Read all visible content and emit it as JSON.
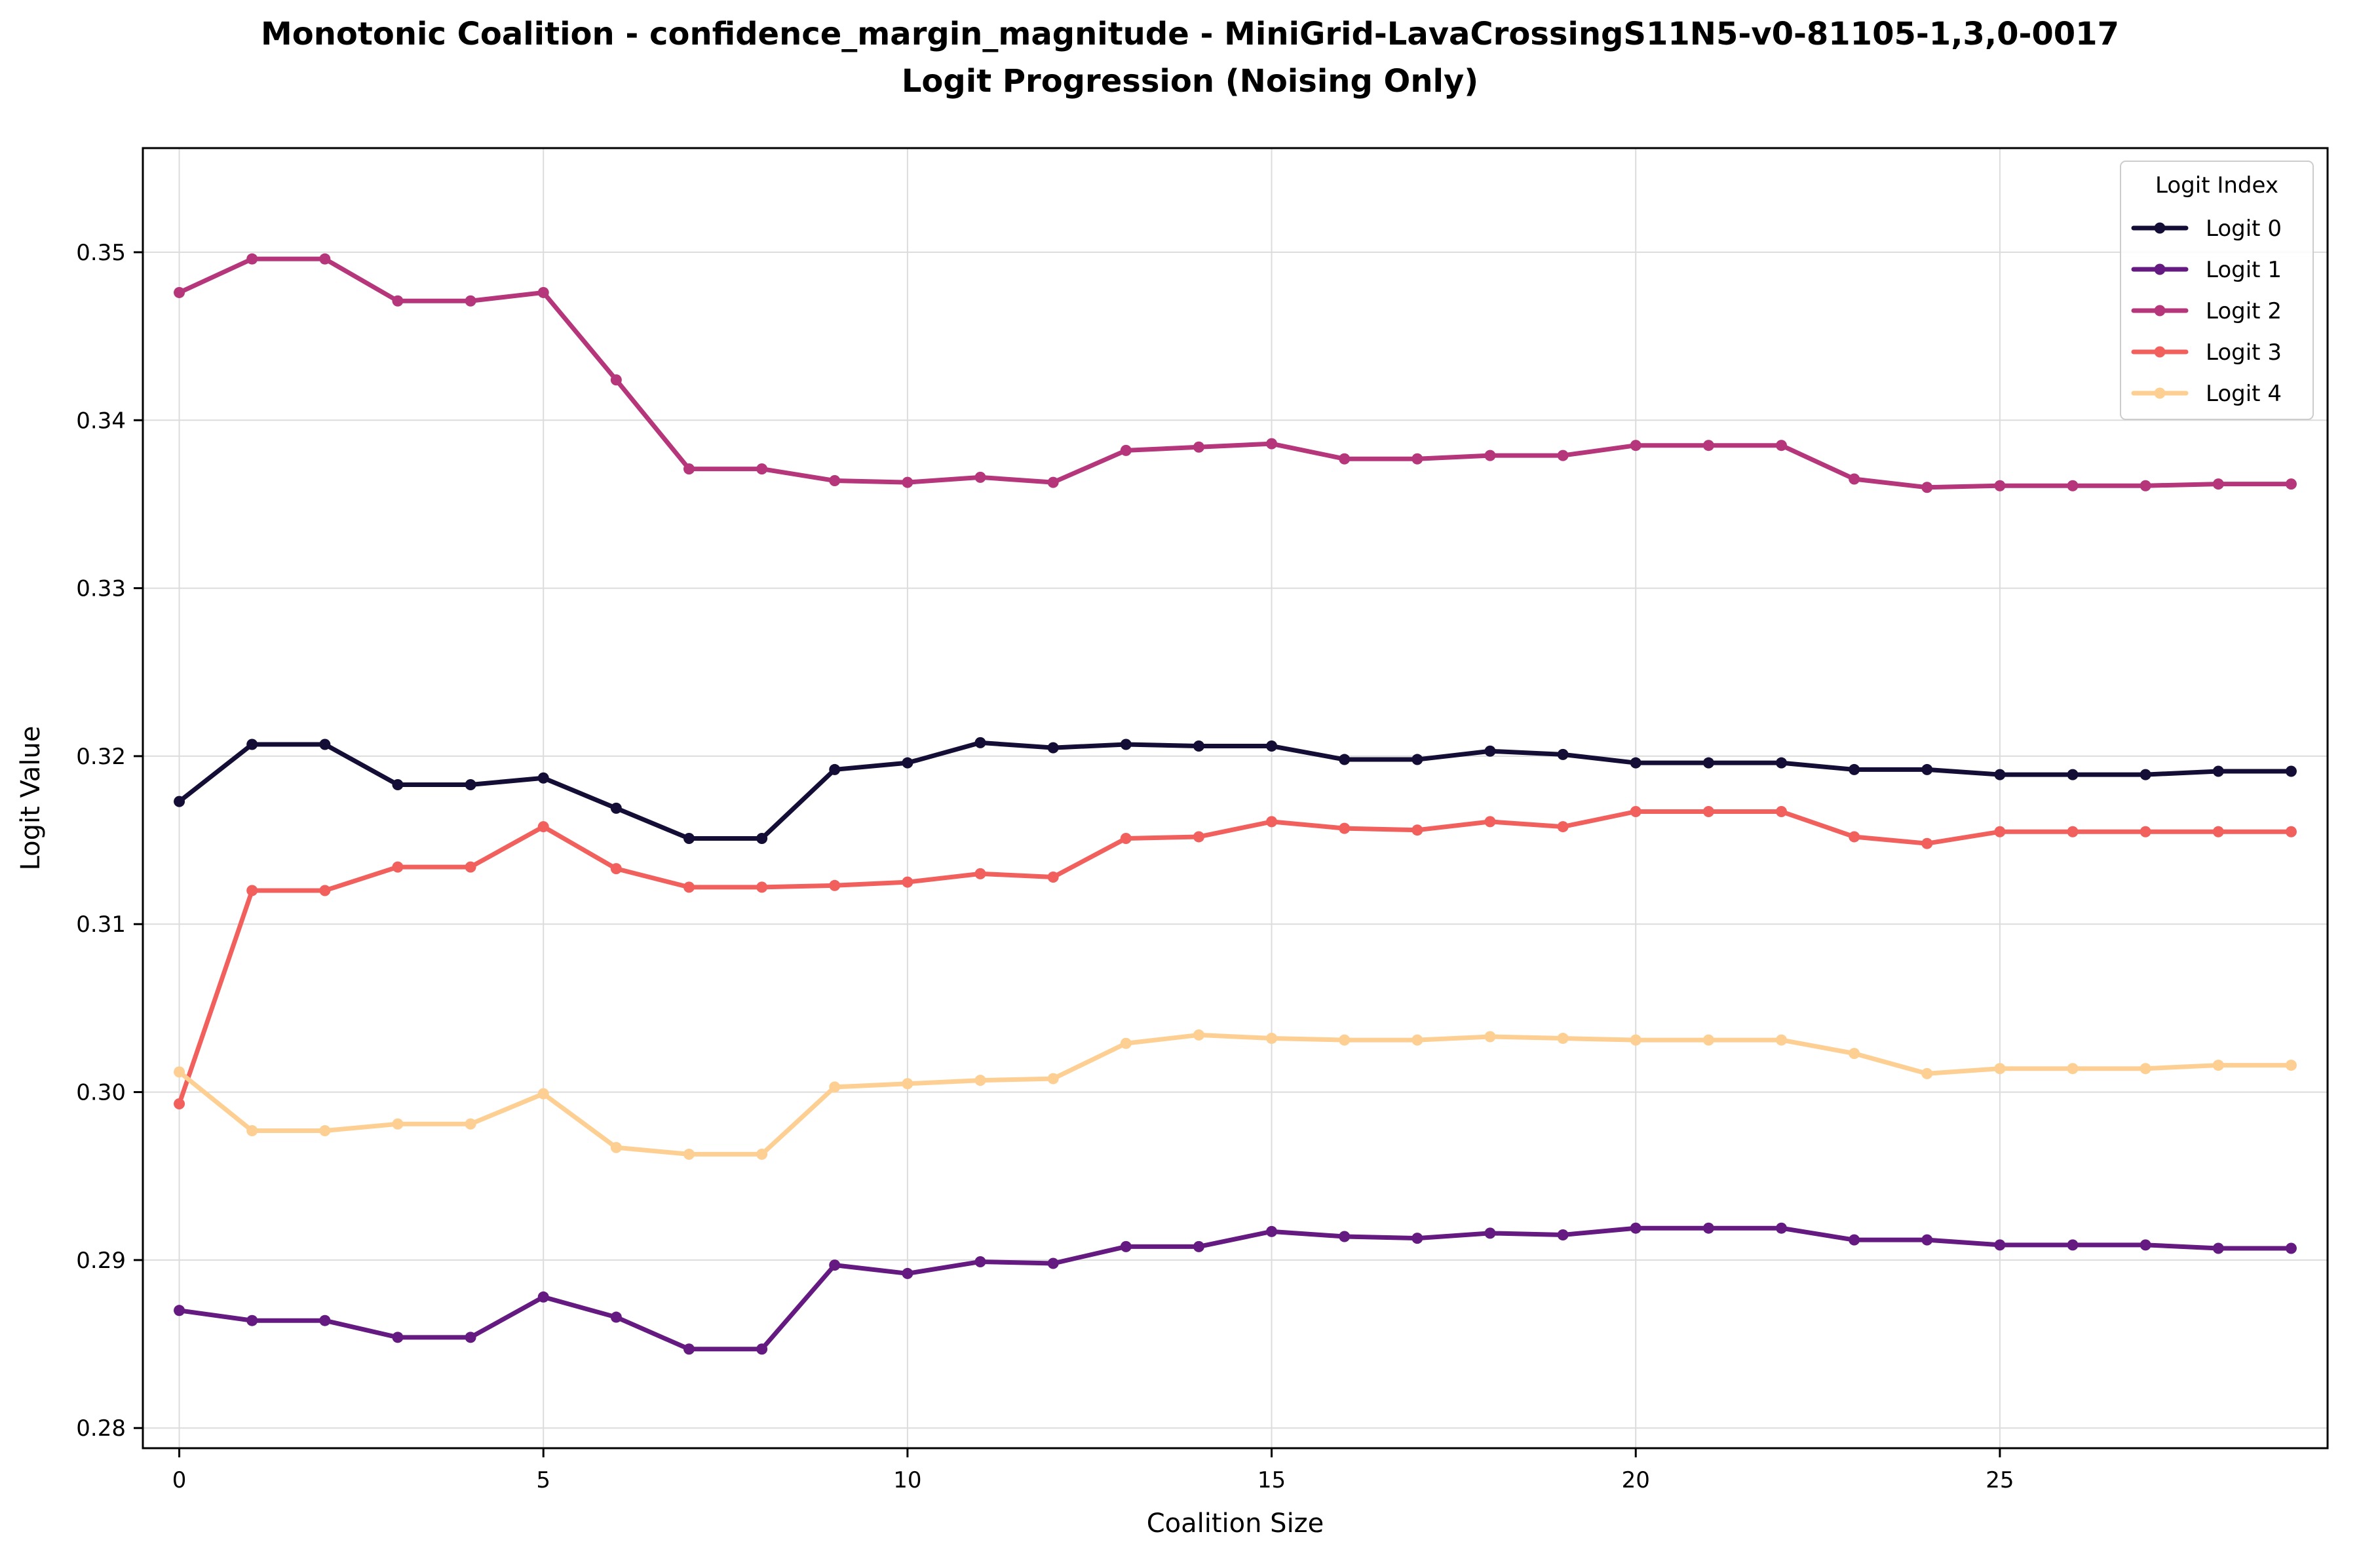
{
  "chart_data": {
    "type": "line",
    "title": "Monotonic Coalition - confidence_margin_magnitude - MiniGrid-LavaCrossingS11N5-v0-81105-1,3,0-0017",
    "subtitle": "Logit Progression (Noising Only)",
    "xlabel": "Coalition Size",
    "ylabel": "Logit Value",
    "xlim": [
      -0.5,
      29.5
    ],
    "ylim": [
      0.2788,
      0.3562
    ],
    "xticks": [
      0,
      5,
      10,
      15,
      20,
      25
    ],
    "xtick_labels": [
      "0",
      "5",
      "10",
      "15",
      "20",
      "25"
    ],
    "yticks": [
      0.28,
      0.29,
      0.3,
      0.31,
      0.32,
      0.33,
      0.34,
      0.35
    ],
    "ytick_labels": [
      "0.28",
      "0.29",
      "0.30",
      "0.31",
      "0.32",
      "0.33",
      "0.34",
      "0.35"
    ],
    "grid": true,
    "legend_title": "Logit Index",
    "legend_position": "top-right",
    "x": [
      0,
      1,
      2,
      3,
      4,
      5,
      6,
      7,
      8,
      9,
      10,
      11,
      12,
      13,
      14,
      15,
      16,
      17,
      18,
      19,
      20,
      21,
      22,
      23,
      24,
      25,
      26,
      27,
      28,
      29
    ],
    "series": [
      {
        "name": "Logit 0",
        "color": "#140e36",
        "values": [
          0.3173,
          0.3207,
          0.3207,
          0.3183,
          0.3183,
          0.3187,
          0.3169,
          0.3151,
          0.3151,
          0.3192,
          0.3196,
          0.3208,
          0.3205,
          0.3207,
          0.3206,
          0.3206,
          0.3198,
          0.3198,
          0.3203,
          0.3201,
          0.3196,
          0.3196,
          0.3196,
          0.3192,
          0.3192,
          0.3189,
          0.3189,
          0.3189,
          0.3191,
          0.3191
        ]
      },
      {
        "name": "Logit 1",
        "color": "#641a80",
        "values": [
          0.287,
          0.2864,
          0.2864,
          0.2854,
          0.2854,
          0.2878,
          0.2866,
          0.2847,
          0.2847,
          0.2897,
          0.2892,
          0.2899,
          0.2898,
          0.2908,
          0.2908,
          0.2917,
          0.2914,
          0.2913,
          0.2916,
          0.2915,
          0.2919,
          0.2919,
          0.2919,
          0.2912,
          0.2912,
          0.2909,
          0.2909,
          0.2909,
          0.2907,
          0.2907
        ]
      },
      {
        "name": "Logit 2",
        "color": "#b5367a",
        "values": [
          0.3476,
          0.3496,
          0.3496,
          0.3471,
          0.3471,
          0.3476,
          0.3424,
          0.3371,
          0.3371,
          0.3364,
          0.3363,
          0.3366,
          0.3363,
          0.3382,
          0.3384,
          0.3386,
          0.3377,
          0.3377,
          0.3379,
          0.3379,
          0.3385,
          0.3385,
          0.3385,
          0.3365,
          0.336,
          0.3361,
          0.3361,
          0.3361,
          0.3362,
          0.3362
        ]
      },
      {
        "name": "Logit 3",
        "color": "#f1605d",
        "values": [
          0.2993,
          0.312,
          0.312,
          0.3134,
          0.3134,
          0.3158,
          0.3133,
          0.3122,
          0.3122,
          0.3123,
          0.3125,
          0.313,
          0.3128,
          0.3151,
          0.3152,
          0.3161,
          0.3157,
          0.3156,
          0.3161,
          0.3158,
          0.3167,
          0.3167,
          0.3167,
          0.3152,
          0.3148,
          0.3155,
          0.3155,
          0.3155,
          0.3155,
          0.3155
        ]
      },
      {
        "name": "Logit 4",
        "color": "#fecf92",
        "values": [
          0.3012,
          0.2977,
          0.2977,
          0.2981,
          0.2981,
          0.2999,
          0.2967,
          0.2963,
          0.2963,
          0.3003,
          0.3005,
          0.3007,
          0.3008,
          0.3029,
          0.3034,
          0.3032,
          0.3031,
          0.3031,
          0.3033,
          0.3032,
          0.3031,
          0.3031,
          0.3031,
          0.3023,
          0.3011,
          0.3014,
          0.3014,
          0.3014,
          0.3016,
          0.3016
        ]
      }
    ]
  }
}
